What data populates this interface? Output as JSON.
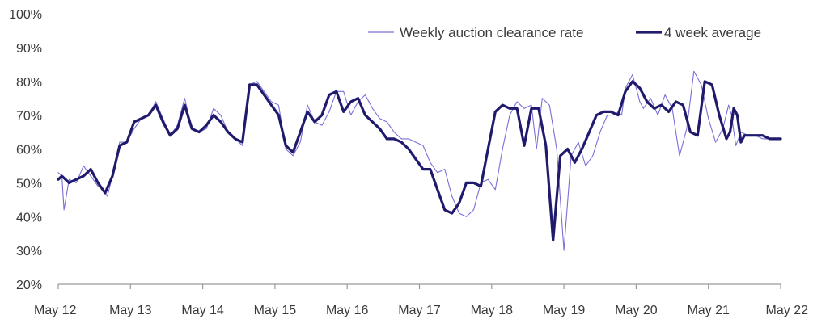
{
  "chart_data": {
    "type": "line",
    "title": "",
    "xlabel": "",
    "ylabel": "",
    "ylim": [
      20,
      100
    ],
    "y_ticks": [
      20,
      30,
      40,
      50,
      60,
      70,
      80,
      90,
      100
    ],
    "y_tick_suffix": "%",
    "x_ticks": [
      "May 12",
      "May 13",
      "May 14",
      "May 15",
      "May 16",
      "May 17",
      "May 18",
      "May 19",
      "May 20",
      "May 21",
      "May 22"
    ],
    "x_range_years": [
      2012,
      2022
    ],
    "grid": false,
    "legend_position": "top-right",
    "colors": {
      "weekly": "#7b6fd6",
      "average": "#1f1a6b",
      "axis": "#9a9a9a"
    },
    "series": [
      {
        "name": "Weekly auction clearance rate",
        "style": "thin",
        "x": [
          2012.0,
          2012.05,
          2012.08,
          2012.15,
          2012.25,
          2012.35,
          2012.45,
          2012.55,
          2012.62,
          2012.68,
          2012.75,
          2012.85,
          2012.95,
          2013.05,
          2013.15,
          2013.25,
          2013.35,
          2013.45,
          2013.55,
          2013.65,
          2013.75,
          2013.85,
          2013.95,
          2014.05,
          2014.15,
          2014.25,
          2014.35,
          2014.45,
          2014.55,
          2014.65,
          2014.75,
          2014.85,
          2014.95,
          2015.05,
          2015.15,
          2015.25,
          2015.35,
          2015.45,
          2015.55,
          2015.65,
          2015.75,
          2015.85,
          2015.95,
          2016.05,
          2016.15,
          2016.25,
          2016.35,
          2016.45,
          2016.55,
          2016.65,
          2016.75,
          2016.85,
          2016.95,
          2017.05,
          2017.15,
          2017.25,
          2017.35,
          2017.45,
          2017.55,
          2017.65,
          2017.75,
          2017.85,
          2017.95,
          2018.05,
          2018.15,
          2018.25,
          2018.35,
          2018.45,
          2018.55,
          2018.62,
          2018.7,
          2018.8,
          2018.9,
          2019.0,
          2019.1,
          2019.2,
          2019.3,
          2019.4,
          2019.5,
          2019.6,
          2019.7,
          2019.75,
          2019.8,
          2019.85,
          2019.9,
          2019.95,
          2020.0,
          2020.05,
          2020.1,
          2020.2,
          2020.3,
          2020.4,
          2020.5,
          2020.6,
          2020.7,
          2020.8,
          2020.9,
          2021.0,
          2021.1,
          2021.2,
          2021.28,
          2021.32,
          2021.38,
          2021.45,
          2021.55,
          2021.65,
          2021.75,
          2021.8,
          2021.9,
          2022.0
        ],
        "values": [
          53,
          52,
          42,
          51,
          50,
          55,
          52,
          49,
          48,
          46,
          52,
          62,
          62,
          66,
          69,
          70,
          74,
          69,
          64,
          67,
          75,
          66,
          65,
          66,
          72,
          70,
          65,
          63,
          61,
          79,
          80,
          77,
          74,
          73,
          60,
          58,
          62,
          73,
          68,
          67,
          71,
          77,
          77,
          70,
          74,
          76,
          72,
          69,
          68,
          65,
          63,
          63,
          62,
          61,
          56,
          53,
          54,
          46,
          41,
          40,
          42,
          50,
          51,
          48,
          60,
          70,
          74,
          72,
          73,
          60,
          75,
          73,
          60,
          30,
          58,
          62,
          55,
          58,
          65,
          70,
          70,
          71,
          70,
          78,
          80,
          82,
          78,
          74,
          72,
          75,
          70,
          76,
          72,
          58,
          66,
          83,
          79,
          69,
          62,
          66,
          73,
          70,
          61,
          65,
          64,
          64,
          63,
          63,
          63,
          63
        ],
        "note": "values approximated from visual reading"
      },
      {
        "name": "4 week average",
        "style": "thick",
        "x": [
          2012.0,
          2012.05,
          2012.15,
          2012.25,
          2012.35,
          2012.45,
          2012.55,
          2012.65,
          2012.75,
          2012.85,
          2012.95,
          2013.05,
          2013.15,
          2013.25,
          2013.35,
          2013.45,
          2013.55,
          2013.65,
          2013.75,
          2013.85,
          2013.95,
          2014.05,
          2014.15,
          2014.25,
          2014.35,
          2014.45,
          2014.55,
          2014.65,
          2014.75,
          2014.85,
          2014.95,
          2015.05,
          2015.15,
          2015.25,
          2015.35,
          2015.45,
          2015.55,
          2015.65,
          2015.75,
          2015.85,
          2015.95,
          2016.05,
          2016.15,
          2016.25,
          2016.35,
          2016.45,
          2016.55,
          2016.65,
          2016.75,
          2016.85,
          2016.95,
          2017.05,
          2017.15,
          2017.25,
          2017.35,
          2017.45,
          2017.55,
          2017.65,
          2017.75,
          2017.85,
          2017.95,
          2018.05,
          2018.15,
          2018.25,
          2018.35,
          2018.45,
          2018.55,
          2018.65,
          2018.75,
          2018.85,
          2018.95,
          2019.05,
          2019.15,
          2019.25,
          2019.35,
          2019.45,
          2019.55,
          2019.65,
          2019.75,
          2019.85,
          2019.95,
          2020.05,
          2020.15,
          2020.25,
          2020.35,
          2020.45,
          2020.55,
          2020.65,
          2020.75,
          2020.85,
          2020.95,
          2021.05,
          2021.15,
          2021.25,
          2021.3,
          2021.35,
          2021.4,
          2021.45,
          2021.5,
          2021.55,
          2021.65,
          2021.75,
          2021.85,
          2021.95,
          2022.0
        ],
        "values": [
          51,
          52,
          50,
          51,
          52,
          54,
          50,
          47,
          52,
          61,
          62,
          68,
          69,
          70,
          73,
          68,
          64,
          66,
          73,
          66,
          65,
          67,
          70,
          68,
          65,
          63,
          62,
          79,
          79,
          76,
          73,
          70,
          61,
          59,
          65,
          71,
          68,
          70,
          76,
          77,
          71,
          74,
          75,
          70,
          68,
          66,
          63,
          63,
          62,
          60,
          57,
          54,
          54,
          48,
          42,
          41,
          44,
          50,
          50,
          49,
          60,
          71,
          73,
          72,
          72,
          61,
          72,
          72,
          61,
          33,
          58,
          60,
          56,
          60,
          65,
          70,
          71,
          71,
          70,
          77,
          80,
          78,
          74,
          72,
          73,
          71,
          74,
          73,
          65,
          64,
          80,
          79,
          70,
          63,
          65,
          72,
          70,
          62,
          64,
          64,
          64,
          64,
          63,
          63,
          63
        ]
      }
    ]
  }
}
